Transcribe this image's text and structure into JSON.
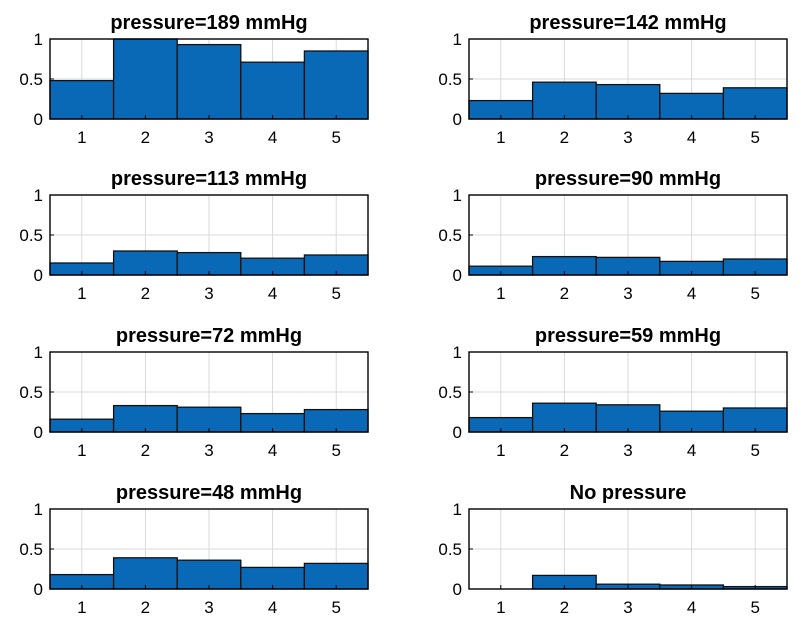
{
  "chart_data": [
    {
      "type": "bar",
      "title": "pressure=189 mmHg",
      "categories": [
        "1",
        "2",
        "3",
        "4",
        "5"
      ],
      "values": [
        0.48,
        1.0,
        0.93,
        0.71,
        0.85
      ],
      "ylim": [
        0,
        1
      ],
      "yticks": [
        "0",
        "0.5",
        "1"
      ],
      "grid": true,
      "bar_color": "#0a69b6"
    },
    {
      "type": "bar",
      "title": "pressure=142 mmHg",
      "categories": [
        "1",
        "2",
        "3",
        "4",
        "5"
      ],
      "values": [
        0.23,
        0.46,
        0.43,
        0.32,
        0.39
      ],
      "ylim": [
        0,
        1
      ],
      "yticks": [
        "0",
        "0.5",
        "1"
      ],
      "grid": true,
      "bar_color": "#0a69b6"
    },
    {
      "type": "bar",
      "title": "pressure=113 mmHg",
      "categories": [
        "1",
        "2",
        "3",
        "4",
        "5"
      ],
      "values": [
        0.15,
        0.3,
        0.28,
        0.21,
        0.25
      ],
      "ylim": [
        0,
        1
      ],
      "yticks": [
        "0",
        "0.5",
        "1"
      ],
      "grid": true,
      "bar_color": "#0a69b6"
    },
    {
      "type": "bar",
      "title": "pressure=90 mmHg",
      "categories": [
        "1",
        "2",
        "3",
        "4",
        "5"
      ],
      "values": [
        0.11,
        0.23,
        0.22,
        0.17,
        0.2
      ],
      "ylim": [
        0,
        1
      ],
      "yticks": [
        "0",
        "0.5",
        "1"
      ],
      "grid": true,
      "bar_color": "#0a69b6"
    },
    {
      "type": "bar",
      "title": "pressure=72 mmHg",
      "categories": [
        "1",
        "2",
        "3",
        "4",
        "5"
      ],
      "values": [
        0.16,
        0.33,
        0.31,
        0.23,
        0.28
      ],
      "ylim": [
        0,
        1
      ],
      "yticks": [
        "0",
        "0.5",
        "1"
      ],
      "grid": true,
      "bar_color": "#0a69b6"
    },
    {
      "type": "bar",
      "title": "pressure=59 mmHg",
      "categories": [
        "1",
        "2",
        "3",
        "4",
        "5"
      ],
      "values": [
        0.18,
        0.36,
        0.34,
        0.26,
        0.3
      ],
      "ylim": [
        0,
        1
      ],
      "yticks": [
        "0",
        "0.5",
        "1"
      ],
      "grid": true,
      "bar_color": "#0a69b6"
    },
    {
      "type": "bar",
      "title": "pressure=48 mmHg",
      "categories": [
        "1",
        "2",
        "3",
        "4",
        "5"
      ],
      "values": [
        0.18,
        0.39,
        0.36,
        0.27,
        0.32
      ],
      "ylim": [
        0,
        1
      ],
      "yticks": [
        "0",
        "0.5",
        "1"
      ],
      "grid": true,
      "bar_color": "#0a69b6"
    },
    {
      "type": "bar",
      "title": "No pressure",
      "categories": [
        "1",
        "2",
        "3",
        "4",
        "5"
      ],
      "values": [
        0.0,
        0.17,
        0.06,
        0.05,
        0.03
      ],
      "ylim": [
        0,
        1
      ],
      "yticks": [
        "0",
        "0.5",
        "1"
      ],
      "grid": true,
      "bar_color": "#0a69b6"
    }
  ]
}
